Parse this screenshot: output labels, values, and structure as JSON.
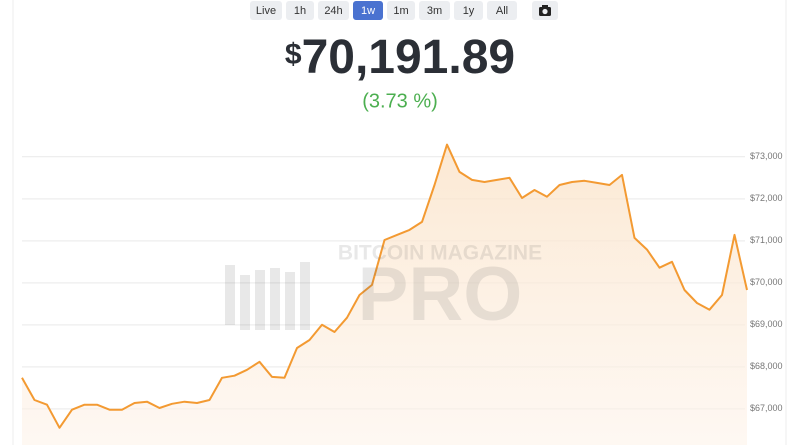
{
  "toolbar": {
    "buttons": [
      "Live",
      "1h",
      "24h",
      "1w",
      "1m",
      "3m",
      "1y",
      "All"
    ],
    "active": "1w"
  },
  "header": {
    "currency_symbol": "$",
    "price": "70,191.89",
    "change": "(3.73 %)"
  },
  "watermark": {
    "line1": "BITCOIN MAGAZINE",
    "line2": "PRO"
  },
  "chart_data": {
    "type": "area",
    "color": "#f39a32",
    "values": [
      67740,
      67210,
      67100,
      66550,
      66980,
      67100,
      67100,
      66980,
      66980,
      67140,
      67170,
      67020,
      67120,
      67170,
      67140,
      67210,
      67740,
      67790,
      67930,
      68120,
      67760,
      67740,
      68450,
      68640,
      69000,
      68830,
      69170,
      69710,
      69950,
      71020,
      71140,
      71260,
      71450,
      72330,
      73290,
      72640,
      72450,
      72400,
      72450,
      72500,
      72020,
      72210,
      72050,
      72330,
      72400,
      72430,
      72380,
      72330,
      72570,
      71070,
      70790,
      70360,
      70500,
      69830,
      69520,
      69360,
      69710,
      71140,
      69830
    ],
    "ylim": [
      66140,
      73400
    ],
    "yticks": [
      {
        "value": 67000,
        "label": "$67,000"
      },
      {
        "value": 68000,
        "label": "$68,000"
      },
      {
        "value": 69000,
        "label": "$69,000"
      },
      {
        "value": 70000,
        "label": "$70,000"
      },
      {
        "value": 71000,
        "label": "$71,000"
      },
      {
        "value": 72000,
        "label": "$72,000"
      },
      {
        "value": 73000,
        "label": "$73,000"
      }
    ],
    "grid": true
  }
}
